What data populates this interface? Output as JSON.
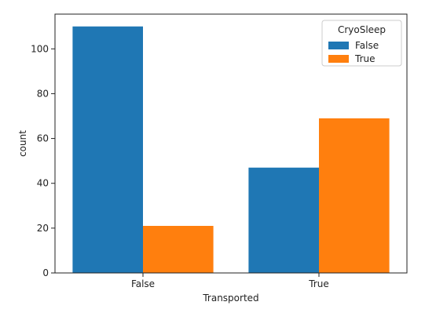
{
  "chart_data": {
    "type": "bar",
    "title": "",
    "xlabel": "Transported",
    "ylabel": "count",
    "categories": [
      "False",
      "True"
    ],
    "series": [
      {
        "name": "False",
        "color": "#1f77b4",
        "values": [
          110,
          47
        ]
      },
      {
        "name": "True",
        "color": "#ff7f0e",
        "values": [
          21,
          69
        ]
      }
    ],
    "ylim": [
      0,
      115.5
    ],
    "yticks": [
      0,
      20,
      40,
      60,
      80,
      100
    ],
    "grid": false,
    "legend": {
      "title": "CryoSleep",
      "placement": "top-right"
    }
  }
}
